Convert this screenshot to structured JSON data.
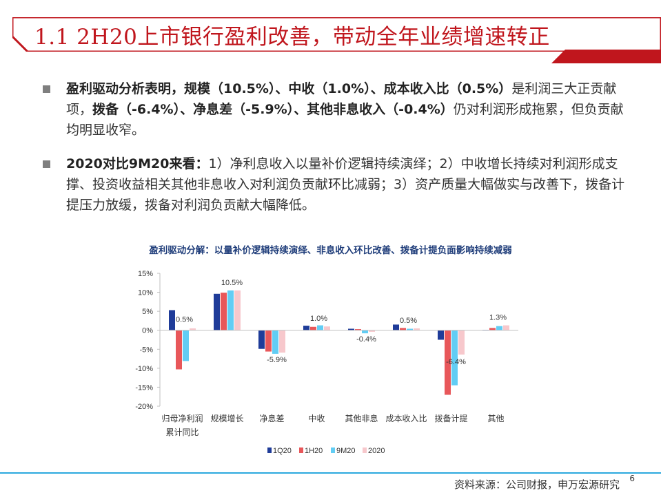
{
  "header": {
    "title": "1.1 2H20上市银行盈利改善，带动全年业绩增速转正",
    "accent_color": "#c0161d"
  },
  "bullets": [
    {
      "parts": [
        {
          "bold": true,
          "text": "盈利驱动分析表明，规模（10.5%）、中收（1.0%）、成本收入比（0.5%）"
        },
        {
          "bold": false,
          "text": "是利润三大正贡献项，"
        },
        {
          "bold": true,
          "text": "拨备（-6.4%）、净息差（-5.9%）、其他非息收入（-0.4%）"
        },
        {
          "bold": false,
          "text": "仍对利润形成拖累，但负贡献均明显收窄。"
        }
      ]
    },
    {
      "parts": [
        {
          "bold": true,
          "text": "2020对比9M20来看："
        },
        {
          "bold": false,
          "text": "1）净利息收入以量补价逻辑持续演绎；2）中收增长持续对利润形成支撑、投资收益相关其他非息收入对利润负贡献环比减弱；3）资产质量大幅做实与改善下，拨备计提压力放缓，拨备对利润负贡献大幅降低。"
        }
      ]
    }
  ],
  "chart_data": {
    "type": "bar",
    "title": "盈利驱动分解：以量补价逻辑持续演绎、非息收入环比改善、拨备计提负面影响持续减弱",
    "categories": [
      "归母净利润累计同比",
      "规模增长",
      "净息差",
      "中收",
      "其他非息",
      "成本收入比",
      "拨备计提",
      "其他"
    ],
    "category_lines": [
      [
        "归母净利润",
        "累计同比"
      ],
      [
        "规模增长"
      ],
      [
        "净息差"
      ],
      [
        "中收"
      ],
      [
        "其他非息"
      ],
      [
        "成本收入比"
      ],
      [
        "拨备计提"
      ],
      [
        "其他"
      ]
    ],
    "series": [
      {
        "name": "1Q20",
        "color": "#1f3c99",
        "values": [
          5.3,
          9.6,
          -4.9,
          1.2,
          0.4,
          1.5,
          -2.5,
          0.1
        ]
      },
      {
        "name": "1H20",
        "color": "#e8575a",
        "values": [
          -10.3,
          9.9,
          -5.6,
          0.9,
          0.3,
          0.6,
          -17.0,
          0.6
        ]
      },
      {
        "name": "9M20",
        "color": "#62cdf4",
        "values": [
          -8.1,
          10.5,
          -6.2,
          1.3,
          -0.8,
          0.4,
          -14.5,
          1.1
        ]
      },
      {
        "name": "2020",
        "color": "#f7c8cc",
        "values": [
          0.5,
          10.5,
          -5.9,
          1.0,
          -0.4,
          0.5,
          -6.4,
          1.3
        ]
      }
    ],
    "data_labels": [
      "0.5%",
      "10.5%",
      "-5.9%",
      "1.0%",
      "-0.4%",
      "0.5%",
      "-6.4%",
      "1.3%"
    ],
    "ylim": [
      -20,
      15
    ],
    "yticks": [
      15,
      10,
      5,
      0,
      -5,
      -10,
      -15,
      -20
    ],
    "ytick_labels": [
      "15%",
      "10%",
      "5%",
      "0%",
      "-5%",
      "-10%",
      "-15%",
      "-20%"
    ],
    "legend_position": "bottom",
    "grid": false
  },
  "footer": {
    "source": "资料来源：公司财报，申万宏源研究",
    "page": "6"
  }
}
